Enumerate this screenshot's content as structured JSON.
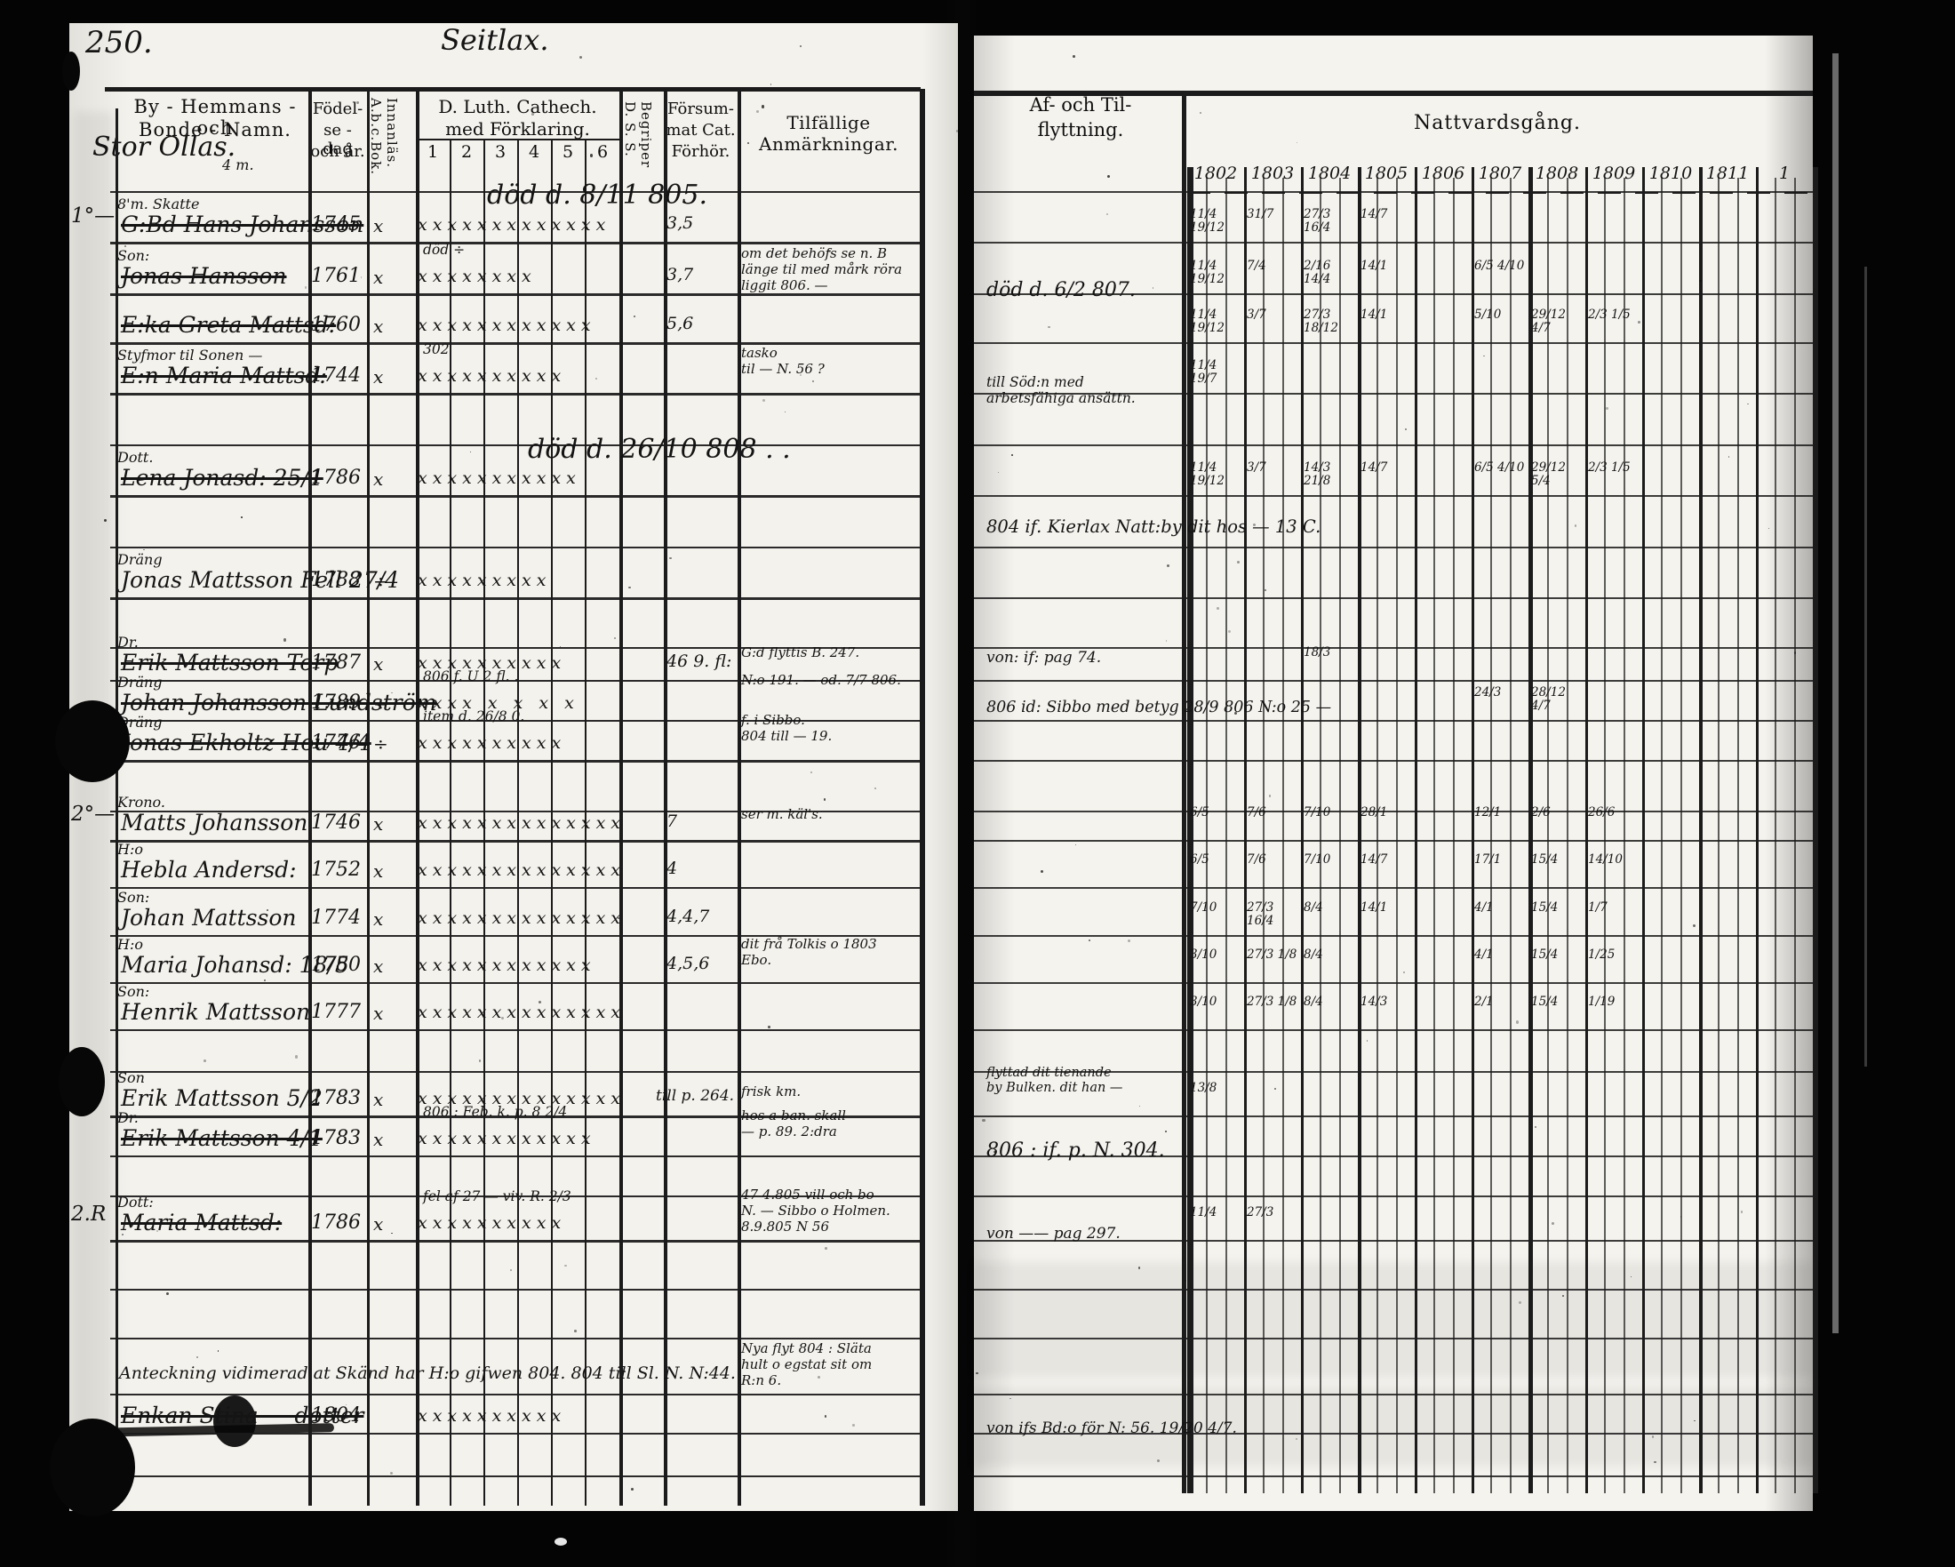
{
  "document": {
    "page_number": "250.",
    "page_title": "Seitlax.",
    "farm_heading": "Stor Ollas.",
    "farm_heading_note": "4 m.",
    "left_table": {
      "header": {
        "name_line1": "By - Hemmans - och",
        "name_line2": "Bonde - Namn.",
        "birth_lines": [
          "Födel-",
          "se - dag",
          "och år."
        ],
        "abc_lines": [
          "A.b.c.Bok.",
          "Innanläs."
        ],
        "cat_line1": "D. Luth. Cathech.",
        "cat_line2": "med Förklaring.",
        "cat_subcols": [
          "1",
          "2",
          "3",
          "4",
          "5",
          "6"
        ],
        "dss_lines": [
          "D. S. S.",
          "Begriper"
        ],
        "missed_lines": [
          "Försum-",
          "mat Cat.",
          "Förhör."
        ],
        "remarks": "Tilfällige Anmärkningar."
      }
    },
    "right_table": {
      "header": {
        "moving_line1": "Af- och Til-",
        "moving_line2": "flyttning.",
        "communion": "Nattvardsgång.",
        "years": [
          "1802",
          "1803",
          "1804",
          "1805",
          "1806",
          "1807",
          "1808",
          "1809",
          "1810",
          "1811",
          "1"
        ]
      }
    },
    "rows": [
      {
        "margin": "1°—",
        "prefix": "8'm. Skatte",
        "name": "G:Bd Hans Johansson",
        "birth": "1745",
        "abc": "x",
        "marks": "xxxxxxxxxxxxx",
        "catnote": "",
        "missed": "3,5",
        "remark_big": "död d. 8/11 805.",
        "remarks": [],
        "struck": true,
        "moving": [],
        "communion": [
          "11/4 19/12",
          "31/7",
          "27/3 16/4",
          "14/7",
          "",
          "",
          "",
          "",
          "",
          "",
          ""
        ]
      },
      {
        "margin": "",
        "prefix": "Son:",
        "name": "Jonas Hansson",
        "birth": "1761",
        "abc": "x",
        "marks": "xxxxxxxx",
        "catnote": "död ÷",
        "missed": "3,7",
        "remarks": [
          "om det behöfs se n. B",
          "länge til med mårk röra",
          "liggit 806. —"
        ],
        "struck": true,
        "moving": [
          "död d. 6/2 807."
        ],
        "communion": [
          "11/4 19/12",
          "7/4",
          "2/16 14/4",
          "14/1",
          "",
          "6/5 4/10",
          "",
          "",
          "",
          "",
          ""
        ]
      },
      {
        "margin": "",
        "prefix": "",
        "name": "E:ka Greta Mattsd:",
        "birth": "1760",
        "abc": "x",
        "marks": "xxxxxxxxxxxx",
        "catnote": "",
        "missed": "5,6",
        "remarks": [],
        "struck": true,
        "moving": [],
        "communion": [
          "11/4 19/12",
          "3/7",
          "27/3 18/12",
          "14/1",
          "",
          "5/10",
          "29/12 4/7",
          "2/3 1/5",
          "",
          "",
          ""
        ]
      },
      {
        "margin": "",
        "prefix": "Styfmor til Sonen —",
        "name": "E:n Maria Mattsd:",
        "birth": "1744",
        "abc": "x",
        "marks": "xxxxxxxxxx",
        "catnote": "302",
        "missed": "",
        "remarks": [
          "tasko",
          "til — N. 56 ?"
        ],
        "struck": true,
        "moving": [
          "till Söd:n med",
          "arbetsfähiga ansättn."
        ],
        "communion": [
          "11/4 19/7",
          "",
          "",
          "",
          "",
          "",
          "",
          "",
          "",
          "",
          ""
        ]
      },
      {
        "margin": "",
        "prefix": "Dott.",
        "name": "Lena Jonasd:  25/1",
        "birth": "1786",
        "abc": "x",
        "marks": "xxxxxxxxxxx",
        "catnote": "",
        "missed": "",
        "remark_big": "död d. 26/10 808 . .",
        "remarks": [],
        "struck": true,
        "moving": [],
        "communion": [
          "11/4 19/12",
          "3/7",
          "14/3 21/8",
          "14/7",
          "",
          "6/5 4/10",
          "29/12 5/4",
          "2/3 1/5",
          "",
          "",
          ""
        ]
      },
      {
        "margin": "",
        "prefix": "Dräng",
        "name": "Jonas Mattsson Fell  27/4",
        "birth": "1788",
        "abc": "÷",
        "marks": "xxxxxxxxx",
        "catnote": "",
        "missed": "",
        "remarks": [],
        "struck": false,
        "moving": [
          "804 if. Kierlax Natt:by dit hos — 13 C."
        ],
        "communion": [
          "",
          "",
          "",
          "",
          "",
          "",
          "",
          "",
          "",
          "",
          ""
        ]
      },
      {
        "margin": "",
        "prefix": "Dr.",
        "name": "Erik Mattsson Torp",
        "birth": "1787",
        "abc": "x",
        "marks": "xxxxxxxxxx",
        "catnote": "",
        "missed": "46 9. fl:",
        "remarks": [
          "G:d flyttis  B. 247."
        ],
        "struck": true,
        "moving": [
          "von: if: pag 74."
        ],
        "communion": [
          "",
          "",
          "18/3",
          "",
          "",
          "",
          "",
          "",
          "",
          "",
          ""
        ]
      },
      {
        "margin": "",
        "prefix": "Dräng",
        "name": "Johan Johansson Lundström",
        "birth": "1789",
        "abc": "÷",
        "marks": "xxxx x x x x",
        "catnote": "806 f. U 2 fl. .",
        "missed": "",
        "remarks": [
          "N:o 191.   — od. 7/7 806."
        ],
        "struck": true,
        "moving": [
          "806 id: Sibbo med betyg 28/9 806 N:o 25 —"
        ],
        "communion": [
          "",
          "",
          "",
          "",
          "",
          "24/3",
          "28/12 4/7",
          "",
          "",
          "",
          ""
        ]
      },
      {
        "margin": "",
        "prefix": "Dräng",
        "name": "Jonas Ekholtz Hou  4/4",
        "birth": "1776",
        "abc": "÷",
        "marks": "xxxxxxxxxx",
        "catnote": "item d. 26/8 0.",
        "missed": "",
        "remarks": [
          "f. i Sibbo.",
          "804 till — 19."
        ],
        "struck": true,
        "moving": [],
        "communion": [
          "",
          "",
          "",
          "",
          "",
          "",
          "",
          "",
          "",
          "",
          ""
        ]
      },
      {
        "margin": "2°—",
        "prefix": "Krono.",
        "name": "Matts Johansson",
        "birth": "1746",
        "abc": "x",
        "marks": "xxxxxxxxxxxxxxxx",
        "catnote": "",
        "missed": "7",
        "remarks": [
          "ser m. käl's."
        ],
        "struck": false,
        "moving": [],
        "communion": [
          "6/5",
          "7/6",
          "7/10",
          "28/1",
          "",
          "12/1",
          "2/6",
          "26/6",
          "",
          "",
          ""
        ]
      },
      {
        "margin": "",
        "prefix": "H:o",
        "name": "Hebla Andersd:",
        "birth": "1752",
        "abc": "x",
        "marks": "xxxxxxxxxxxxxxxx",
        "catnote": "",
        "missed": "4",
        "remarks": [],
        "struck": false,
        "moving": [],
        "communion": [
          "6/5",
          "7/6",
          "7/10",
          "14/7",
          "",
          "17/1",
          "15/4",
          "14/10",
          "",
          "",
          ""
        ]
      },
      {
        "margin": "",
        "prefix": "Son:",
        "name": "Johan Mattsson",
        "birth": "1774",
        "abc": "x",
        "marks": "xxxxxxxxxxxxxxx",
        "catnote": "",
        "missed": "4,4,7",
        "remarks": [],
        "struck": false,
        "moving": [],
        "communion": [
          "7/10",
          "27/3 16/4",
          "8/4",
          "14/1",
          "",
          "4/1",
          "15/4",
          "1/7",
          "",
          "",
          ""
        ]
      },
      {
        "margin": "",
        "prefix": "H:o",
        "name": "Maria Johansd:  18/5",
        "birth": "1780",
        "abc": "x",
        "marks": "xxxxxxxxxxxx",
        "catnote": "",
        "missed": "4,5,6",
        "remarks": [
          "dit frå Tolkis o 1803",
          "Ebo."
        ],
        "struck": false,
        "moving": [],
        "communion": [
          "3/10",
          "27/3 1/8",
          "8/4",
          "",
          "",
          "4/1",
          "15/4",
          "1/25",
          "",
          "",
          ""
        ]
      },
      {
        "margin": "",
        "prefix": "Son:",
        "name": "Henrik Mattsson",
        "birth": "1777",
        "abc": "x",
        "marks": "xxxxxxxxxxxxxx",
        "catnote": "",
        "missed": "",
        "remarks": [],
        "struck": false,
        "moving": [],
        "communion": [
          "3/10",
          "27/3 1/8",
          "8/4",
          "14/3",
          "",
          "2/1",
          "15/4",
          "1/19",
          "",
          "",
          ""
        ]
      },
      {
        "margin": "",
        "prefix": "Son",
        "name": "Erik Mattsson  5/2",
        "birth": "1783",
        "abc": "x",
        "marks": "xxxxxxxxxxxxxx",
        "catnote": "",
        "missed": "till p. 264.",
        "remarks": [
          "frisk km."
        ],
        "struck": false,
        "moving": [
          "flyttad dit tienande",
          "by Bulken. dit han —"
        ],
        "communion": [
          "13/8",
          "",
          "",
          "",
          "",
          "",
          "",
          "",
          "",
          "",
          ""
        ]
      },
      {
        "margin": "",
        "prefix": "Dr.",
        "name": "Erik Mattsson  4/1",
        "birth": "1783",
        "abc": "x",
        "marks": "xxxxxxxxxxxx",
        "catnote": "806 : Feb. k. p. 8 2/4",
        "missed": "",
        "remarks": [
          "hos a ban. skall",
          "— p. 89. 2:dra"
        ],
        "struck": true,
        "moving": [
          "806 : if. p. N. 304."
        ],
        "communion": [
          "",
          "",
          "",
          "",
          "",
          "",
          "",
          "",
          "",
          "",
          ""
        ]
      },
      {
        "margin": "2.R",
        "prefix": "Dott:",
        "name": "Maria Mattsd:",
        "birth": "1786",
        "abc": "x",
        "marks": "xxxxxxxxxx",
        "catnote": "fel af 27 — viv. R. 2/3",
        "missed": "",
        "remarks": [
          "47 4.805 vill och bo",
          "N. — Sibbo o Holmen.",
          "8.9.805 N 56"
        ],
        "struck": true,
        "moving": [
          "von —— pag 297."
        ],
        "communion": [
          "11/4",
          "27/3",
          "",
          "",
          "",
          "",
          "",
          "",
          "",
          "",
          ""
        ]
      },
      {
        "margin": "",
        "prefix": "",
        "name": "Anteckning vidimerad at Skänd har H:o gifwen 804. 804 till Sl. N. N:44.",
        "wide": true,
        "birth": "",
        "abc": "",
        "marks": "",
        "catnote": "",
        "missed": "",
        "remarks": [
          "Nya flyt 804 : Släta",
          "hult o egstat sit om",
          "R:n 6."
        ],
        "struck": false,
        "moving": [],
        "communion": [
          "",
          "",
          "",
          "",
          "",
          "",
          "",
          "",
          "",
          "",
          ""
        ]
      },
      {
        "margin": "",
        "prefix": "",
        "name": "Enkan Stina — dotter",
        "birth": "1804",
        "abc": "",
        "marks": "xxxxxxxxxx",
        "catnote": "",
        "missed": "",
        "remarks": [],
        "struck": true,
        "moving": [
          "von ifs Bd:o för N: 56.  19/20 4/7."
        ],
        "communion": [
          "",
          "",
          "",
          "",
          "",
          "",
          "",
          "",
          "",
          "",
          ""
        ]
      }
    ]
  }
}
